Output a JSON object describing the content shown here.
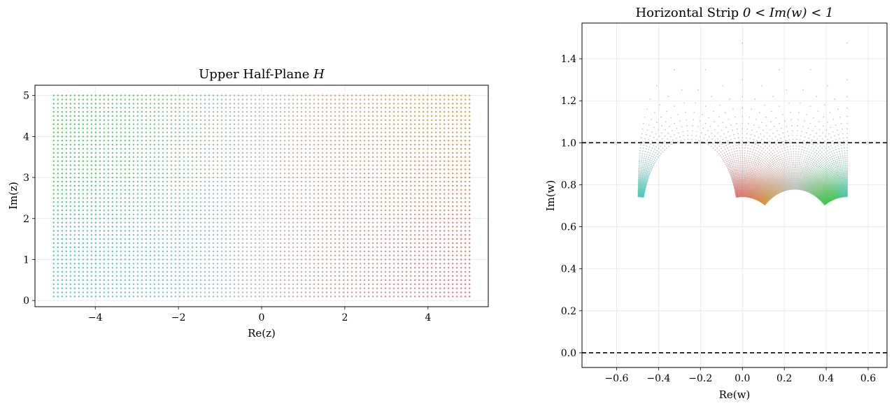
{
  "chart_data": [
    {
      "type": "scatter",
      "title_main": "Upper Half-Plane ",
      "title_math": "H",
      "xlabel": "Re(z)",
      "ylabel": "Im(z)",
      "xlim": [
        -5.45,
        5.45
      ],
      "ylim": [
        -0.15,
        5.25
      ],
      "xticks": [
        -4,
        -2,
        0,
        2,
        4
      ],
      "yticks": [
        0,
        1,
        2,
        3,
        4,
        5
      ],
      "xtick_labels": [
        "−4",
        "−2",
        "0",
        "2",
        "4"
      ],
      "ytick_labels": [
        "0",
        "1",
        "2",
        "3",
        "4",
        "5"
      ],
      "grid": true,
      "points": {
        "generator": "grid",
        "x_range": [
          -5,
          5
        ],
        "y_range": [
          0.1,
          5
        ],
        "x_count": 100,
        "y_count": 50,
        "color_by": "position (left-bottom cyan, left-top green, center gray, right-top orange, right-bottom red)"
      },
      "colors": {
        "left_bottom": "#3ec4c4",
        "left_top": "#46c453",
        "center": "#b4b4b4",
        "right_top": "#d39a3c",
        "right_bottom": "#d86b6b"
      }
    },
    {
      "type": "scatter",
      "title_main": "Horizontal Strip ",
      "title_math": "0 < Im(w) < 1",
      "xlabel": "Re(w)",
      "ylabel": "Im(w)",
      "xlim": [
        -0.765,
        0.69
      ],
      "ylim": [
        -0.07,
        1.57
      ],
      "xticks": [
        -0.6,
        -0.4,
        -0.2,
        0.0,
        0.2,
        0.4,
        0.6
      ],
      "yticks": [
        0.0,
        0.2,
        0.4,
        0.6,
        0.8,
        1.0,
        1.2,
        1.4
      ],
      "xtick_labels": [
        "−0.6",
        "−0.4",
        "−0.2",
        "0.0",
        "0.2",
        "0.4",
        "0.6"
      ],
      "ytick_labels": [
        "0.0",
        "0.2",
        "0.4",
        "0.6",
        "0.8",
        "1.0",
        "1.2",
        "1.4"
      ],
      "grid": true,
      "hlines": [
        {
          "y": 1.0,
          "style": "dashed",
          "color": "#000000"
        },
        {
          "y": 0.0,
          "style": "dashed",
          "color": "#000000"
        }
      ],
      "points": {
        "generator": "image of left panel grid",
        "mapping": "w = (1/(2*pi*i)) * log(z - i) + 1"
      }
    }
  ]
}
